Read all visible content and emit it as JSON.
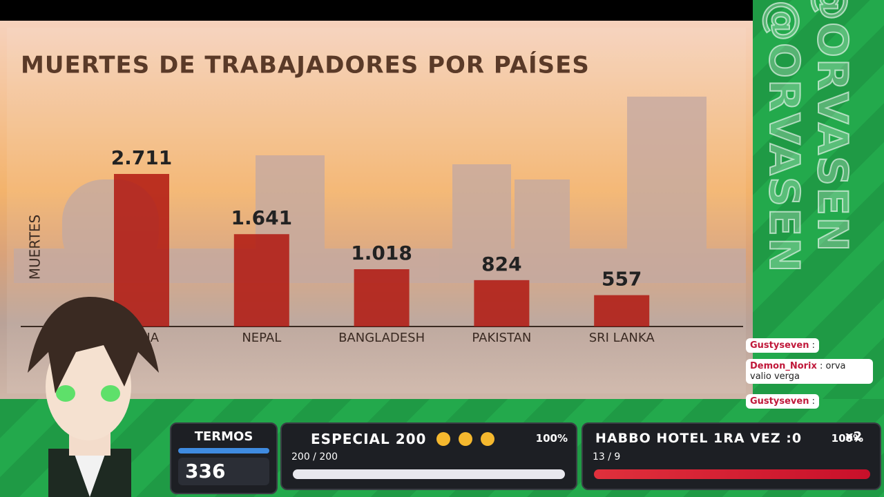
{
  "chart_data": {
    "type": "bar",
    "title": "MUERTES DE TRABAJADORES POR PAÍSES",
    "y_label": "MUERTES",
    "categories": [
      "INDIA",
      "NEPAL",
      "BANGLADESH",
      "PAKISTAN",
      "SRI LANKA"
    ],
    "values": [
      2711,
      1641,
      1018,
      824,
      557
    ],
    "value_labels": [
      "2.711",
      "1.641",
      "1.018",
      "824",
      "557"
    ],
    "color": "#b01810"
  },
  "overlay": {
    "watermark": "@ORVASEN",
    "chat": [
      {
        "user": "Gustyseven",
        "text": ":"
      },
      {
        "user": "Demon_Norix",
        "text": ": orva valio verga"
      },
      {
        "user": "Gustyseven",
        "text": ":"
      }
    ],
    "counter": {
      "label": "TERMOS",
      "value": 336
    },
    "goals": [
      {
        "title": "ESPECIAL 200",
        "percent": "100%",
        "progress": "200 / 200"
      },
      {
        "title": "HABBO HOTEL 1RA VEZ :0",
        "percent": "100%",
        "progress": "13 / 9",
        "badge": "x2"
      }
    ]
  }
}
